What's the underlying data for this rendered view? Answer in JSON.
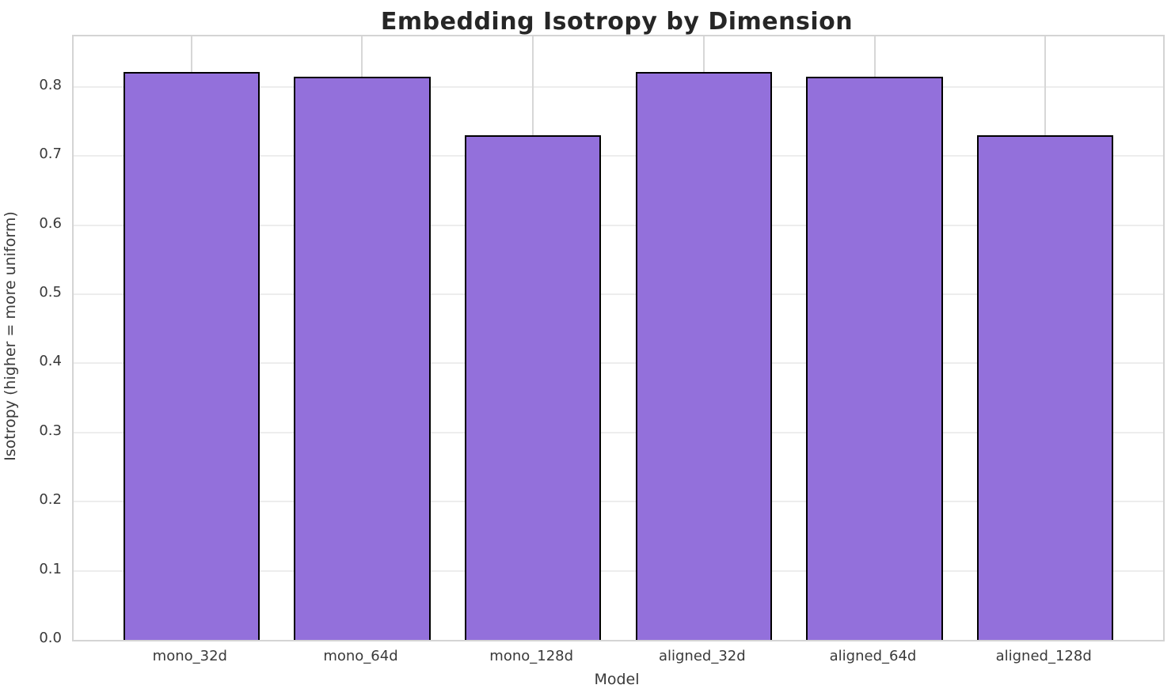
{
  "chart_data": {
    "type": "bar",
    "title": "Embedding Isotropy by Dimension",
    "xlabel": "Model",
    "ylabel": "Isotropy (higher = more uniform)",
    "categories": [
      "mono_32d",
      "mono_64d",
      "mono_128d",
      "aligned_32d",
      "aligned_64d",
      "aligned_128d"
    ],
    "values": [
      0.822,
      0.815,
      0.73,
      0.822,
      0.815,
      0.73
    ],
    "ylim": [
      0,
      0.873
    ],
    "yticks": [
      0.0,
      0.1,
      0.2,
      0.3,
      0.4,
      0.5,
      0.6,
      0.7,
      0.8
    ],
    "ytick_labels": [
      "0.0",
      "0.1",
      "0.2",
      "0.3",
      "0.4",
      "0.5",
      "0.6",
      "0.7",
      "0.8"
    ],
    "grid": true,
    "legend": false,
    "bar_color": "#9370DB",
    "bar_edge_color": "#000000",
    "title_color": "#262626",
    "tick_color": "#3a3a3a"
  }
}
